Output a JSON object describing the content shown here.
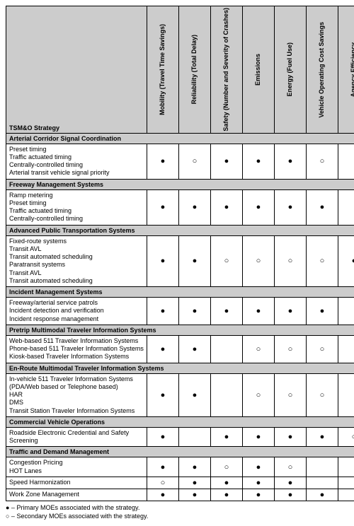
{
  "header": {
    "strategy_label": "TSM&O Strategy",
    "columns": [
      "Mobility (Travel Time Savings)",
      "Reliability (Total Delay)",
      "Safety (Number and Severity of Crashes)",
      "Emissions",
      "Energy (Fuel Use)",
      "Vehicle Operating Cost Savings",
      "Agency Efficiency"
    ]
  },
  "symbols": {
    "primary": "●",
    "secondary": "○",
    "none": ""
  },
  "sections": [
    {
      "title": "Arterial Corridor Signal Coordination",
      "rows": [
        {
          "items": [
            "Preset timing",
            "Traffic actuated timing",
            "Centrally-controlled timing",
            "Arterial transit vehicle signal priority"
          ],
          "marks": [
            "primary",
            "secondary",
            "primary",
            "primary",
            "primary",
            "secondary",
            ""
          ]
        }
      ]
    },
    {
      "title": "Freeway Management Systems",
      "rows": [
        {
          "items": [
            "Ramp metering",
            "Preset timing",
            "Traffic actuated timing",
            "Centrally-controlled timing"
          ],
          "marks": [
            "primary",
            "primary",
            "primary",
            "primary",
            "primary",
            "primary",
            ""
          ]
        }
      ]
    },
    {
      "title": "Advanced Public Transportation Systems",
      "rows": [
        {
          "items": [
            "Fixed-route systems",
            "Transit AVL",
            "Transit automated scheduling",
            "Paratransit systems",
            "Transit AVL",
            "Transit automated scheduling"
          ],
          "marks": [
            "primary",
            "primary",
            "secondary",
            "secondary",
            "secondary",
            "secondary",
            "primary"
          ]
        }
      ]
    },
    {
      "title": "Incident Management Systems",
      "rows": [
        {
          "items": [
            "Freeway/arterial service patrols",
            "Incident detection and verification",
            "Incident response management"
          ],
          "marks": [
            "primary",
            "primary",
            "primary",
            "primary",
            "primary",
            "primary",
            ""
          ]
        }
      ]
    },
    {
      "title": "Pretrip Multimodal Traveler Information Systems",
      "rows": [
        {
          "items": [
            "Web-based 511 Traveler Information Systems",
            "Phone-based 511 Traveler Information Systems",
            "Kiosk-based Traveler Information Systems"
          ],
          "marks": [
            "primary",
            "primary",
            "",
            "secondary",
            "secondary",
            "secondary",
            ""
          ]
        }
      ]
    },
    {
      "title": "En-Route Multimodal Traveler Information Systems",
      "rows": [
        {
          "items": [
            "In-vehicle 511 Traveler Information Systems (PDA/Web based or Telephone based)",
            "HAR",
            "DMS",
            "Transit Station Traveler Information Systems"
          ],
          "marks": [
            "primary",
            "primary",
            "",
            "secondary",
            "secondary",
            "secondary",
            ""
          ]
        }
      ]
    },
    {
      "title": "Commercial Vehicle Operations",
      "rows": [
        {
          "items": [
            "Roadside Electronic Credential and Safety Screening"
          ],
          "marks": [
            "primary",
            "",
            "primary",
            "primary",
            "primary",
            "primary",
            "secondary"
          ]
        }
      ]
    },
    {
      "title": "Traffic and Demand Management",
      "rows": [
        {
          "items": [
            "Congestion Pricing",
            "HOT Lanes"
          ],
          "marks": [
            "primary",
            "primary",
            "secondary",
            "primary",
            "secondary",
            "",
            ""
          ]
        },
        {
          "items": [
            "Speed Harmonization"
          ],
          "marks": [
            "secondary",
            "primary",
            "primary",
            "primary",
            "primary",
            "",
            ""
          ]
        },
        {
          "items": [
            "Work Zone Management"
          ],
          "marks": [
            "primary",
            "primary",
            "primary",
            "primary",
            "primary",
            "primary",
            ""
          ]
        }
      ]
    }
  ],
  "legend": {
    "primary": "● – Primary MOEs associated with the strategy.",
    "secondary": "○ – Secondary MOEs associated with the strategy."
  }
}
